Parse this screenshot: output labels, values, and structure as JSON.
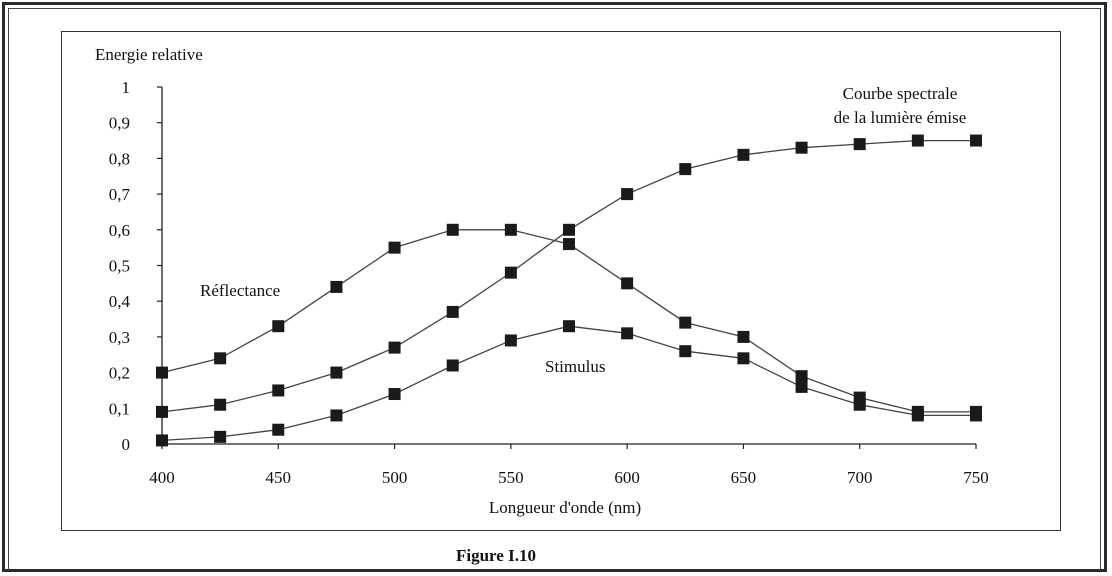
{
  "figure": {
    "caption": "Figure I.10"
  },
  "chart_data": {
    "type": "line",
    "ylabel": "Energie relative",
    "xlabel": "Longueur d'onde (nm)",
    "xlim": [
      400,
      750
    ],
    "ylim": [
      0,
      1
    ],
    "x_ticks": [
      400,
      450,
      500,
      550,
      600,
      650,
      700,
      750
    ],
    "y_ticks": [
      "0",
      "0,1",
      "0,2",
      "0,3",
      "0,4",
      "0,5",
      "0,6",
      "0,7",
      "0,8",
      "0,9",
      "1"
    ],
    "grid": false,
    "legend": "none",
    "x": [
      400,
      425,
      450,
      475,
      500,
      525,
      550,
      575,
      600,
      625,
      650,
      675,
      700,
      725,
      750
    ],
    "series": [
      {
        "name": "Courbe spectrale de la lumière émise",
        "label_lines": [
          "Courbe spectrale",
          "de la lumière émise"
        ],
        "values": [
          0.09,
          0.11,
          0.15,
          0.2,
          0.27,
          0.37,
          0.48,
          0.6,
          0.7,
          0.77,
          0.81,
          0.83,
          0.84,
          0.85,
          0.85
        ]
      },
      {
        "name": "Réflectance",
        "label_lines": [
          "Réflectance"
        ],
        "values": [
          0.2,
          0.24,
          0.33,
          0.44,
          0.55,
          0.6,
          0.6,
          0.56,
          0.45,
          0.34,
          0.3,
          0.19,
          0.13,
          0.09,
          0.09
        ]
      },
      {
        "name": "Stimulus",
        "label_lines": [
          "Stimulus"
        ],
        "values": [
          0.01,
          0.02,
          0.04,
          0.08,
          0.14,
          0.22,
          0.29,
          0.33,
          0.31,
          0.26,
          0.24,
          0.16,
          0.11,
          0.08,
          0.08
        ]
      }
    ]
  }
}
